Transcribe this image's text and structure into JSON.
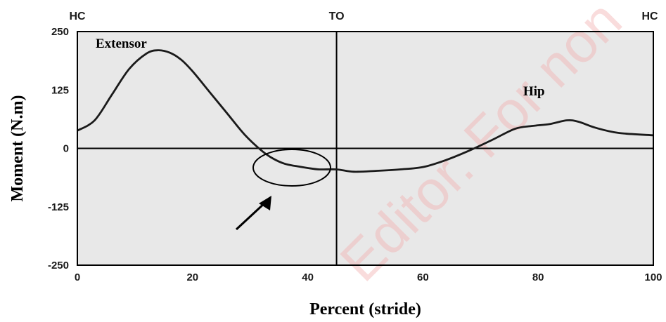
{
  "chart_data": {
    "type": "line",
    "xlabel": "Percent (stride)",
    "ylabel": "Moment (N.m)",
    "xlim": [
      0,
      100
    ],
    "ylim": [
      -250,
      250
    ],
    "x_ticks": [
      "0",
      "20",
      "40",
      "60",
      "80",
      "100"
    ],
    "y_ticks": [
      "250",
      "125",
      "0",
      "-125",
      "-250"
    ],
    "events": [
      {
        "label": "HC",
        "x": 0
      },
      {
        "label": "TO",
        "x": 45
      },
      {
        "label": "HC",
        "x": 100
      }
    ],
    "annotations": {
      "extensor": "Extensor",
      "hip": "Hip"
    },
    "watermark": "Editor. For non",
    "grid": false,
    "background": "#e8e8e8",
    "series": [
      {
        "line_color": "#1a1a1a",
        "x": [
          0,
          3,
          6,
          9,
          12,
          14,
          16,
          18,
          20,
          23,
          26,
          29,
          32,
          34,
          36,
          38,
          40,
          42,
          45,
          48,
          52,
          56,
          60,
          64,
          68,
          72,
          76,
          79,
          82,
          85,
          87,
          90,
          94,
          100
        ],
        "y": [
          38,
          60,
          115,
          170,
          203,
          210,
          205,
          190,
          165,
          120,
          75,
          30,
          -5,
          -22,
          -33,
          -38,
          -42,
          -45,
          -45,
          -50,
          -48,
          -45,
          -40,
          -25,
          -5,
          18,
          42,
          48,
          52,
          60,
          57,
          44,
          33,
          28
        ]
      }
    ]
  }
}
